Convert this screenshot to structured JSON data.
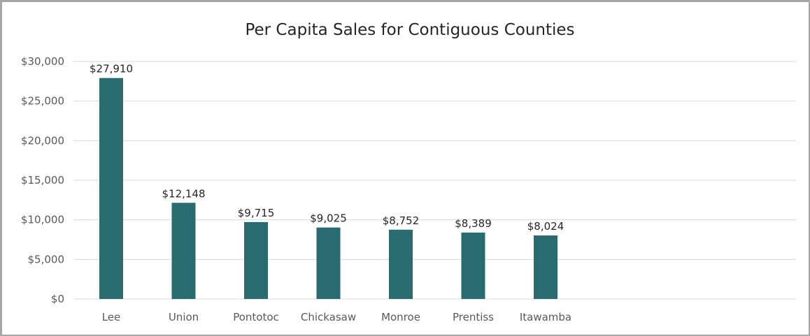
{
  "chart_data": {
    "type": "bar",
    "title": "Per Capita Sales for Contiguous Counties",
    "categories": [
      "Lee",
      "Union",
      "Pontotoc",
      "Chickasaw",
      "Monroe",
      "Prentiss",
      "Itawamba"
    ],
    "values": [
      27910,
      12148,
      9715,
      9025,
      8752,
      8389,
      8024
    ],
    "data_labels": [
      "$27,910",
      "$12,148",
      "$9,715",
      "$9,025",
      "$8,752",
      "$8,389",
      "$8,024"
    ],
    "y_ticks": [
      "$0",
      "$5,000",
      "$10,000",
      "$15,000",
      "$20,000",
      "$25,000",
      "$30,000"
    ],
    "xlabel": "",
    "ylabel": "",
    "ylim": [
      0,
      30000
    ],
    "grid": true,
    "legend": "none",
    "bar_color": "#2a6b70"
  }
}
